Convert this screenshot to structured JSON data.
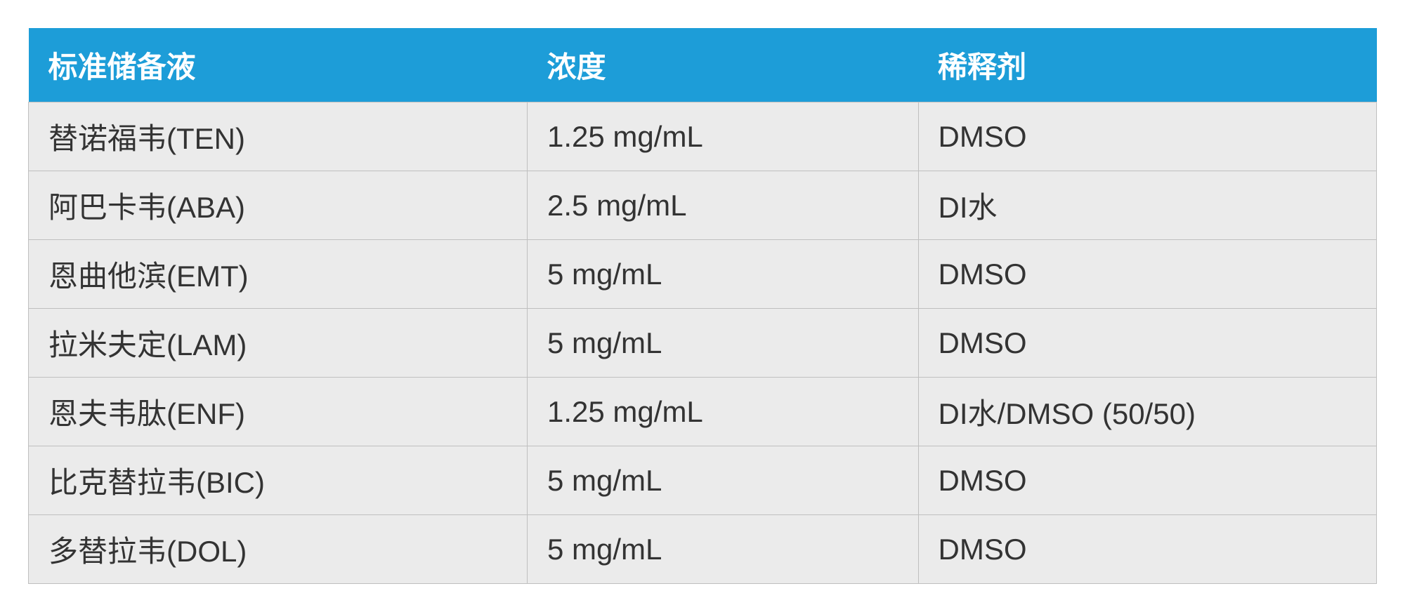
{
  "table": {
    "type": "table",
    "header_bg_color": "#1d9dd8",
    "header_text_color": "#ffffff",
    "row_bg_color": "#ebebeb",
    "border_color": "#bfbfbf",
    "text_color": "#333333",
    "header_fontsize": 42,
    "cell_fontsize": 42,
    "header_fontweight": "bold",
    "column_widths_pct": [
      37,
      29,
      34
    ],
    "columns": [
      "标准储备液",
      "浓度",
      "稀释剂"
    ],
    "rows": [
      [
        "替诺福韦(TEN)",
        "1.25 mg/mL",
        "DMSO"
      ],
      [
        "阿巴卡韦(ABA)",
        "2.5 mg/mL",
        "DI水"
      ],
      [
        "恩曲他滨(EMT)",
        "5 mg/mL",
        "DMSO"
      ],
      [
        "拉米夫定(LAM)",
        "5 mg/mL",
        "DMSO"
      ],
      [
        "恩夫韦肽(ENF)",
        "1.25 mg/mL",
        "DI水/DMSO (50/50)"
      ],
      [
        "比克替拉韦(BIC)",
        "5 mg/mL",
        "DMSO"
      ],
      [
        "多替拉韦(DOL)",
        "5 mg/mL",
        "DMSO"
      ]
    ]
  }
}
